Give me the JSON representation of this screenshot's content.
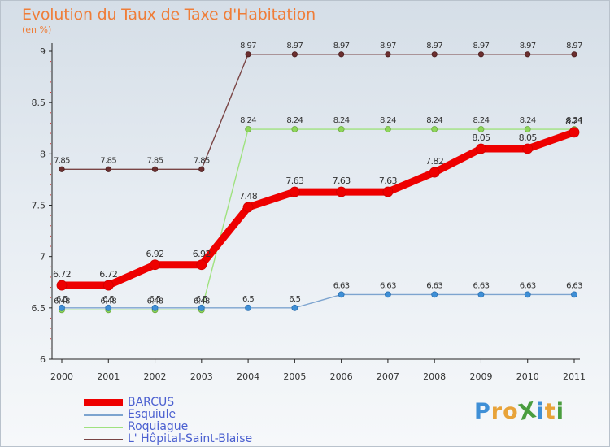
{
  "chart_data": {
    "type": "line",
    "title": "Evolution du Taux de Taxe d'Habitation",
    "ylabel": "(en %)",
    "xlabel": "",
    "categories": [
      "2000",
      "2001",
      "2002",
      "2003",
      "2004",
      "2005",
      "2006",
      "2007",
      "2008",
      "2009",
      "2010",
      "2011"
    ],
    "ylim": [
      6,
      9
    ],
    "yticks": [
      "6",
      "6.5",
      "7",
      "7.5",
      "8",
      "8.5",
      "9"
    ],
    "grid": false,
    "legend_position": "bottom-left",
    "series": [
      {
        "name": "BARCUS",
        "color": "#ee0000",
        "values": [
          6.72,
          6.72,
          6.92,
          6.92,
          7.48,
          7.63,
          7.63,
          7.63,
          7.82,
          8.05,
          8.05,
          8.21
        ],
        "labels": [
          "6.72",
          "6.72",
          "6.92",
          "6.92",
          "7.48",
          "7.63",
          "7.63",
          "7.63",
          "7.82",
          "8.05",
          "8.05",
          "8.21"
        ]
      },
      {
        "name": "Esquiule",
        "color": "#7da4cf",
        "values": [
          6.5,
          6.5,
          6.5,
          6.5,
          6.5,
          6.5,
          6.63,
          6.63,
          6.63,
          6.63,
          6.63,
          6.63
        ],
        "labels": [
          "6.5",
          "6.5",
          "6.5",
          "6.5",
          "6.5",
          "6.5",
          "6.63",
          "6.63",
          "6.63",
          "6.63",
          "6.63",
          "6.63"
        ]
      },
      {
        "name": "Roquiague",
        "color": "#9fe27f",
        "values": [
          6.48,
          6.48,
          6.48,
          6.48,
          8.24,
          8.24,
          8.24,
          8.24,
          8.24,
          8.24,
          8.24,
          8.24
        ],
        "labels": [
          "6.48",
          "6.48",
          "6.48",
          "6.48",
          "8.24",
          "8.24",
          "8.24",
          "8.24",
          "8.24",
          "8.24",
          "8.24",
          "8.24"
        ]
      },
      {
        "name": "L' Hôpital-Saint-Blaise",
        "color": "#7a4545",
        "values": [
          7.85,
          7.85,
          7.85,
          7.85,
          8.97,
          8.97,
          8.97,
          8.97,
          8.97,
          8.97,
          8.97,
          8.97
        ],
        "labels": [
          "7.85",
          "7.85",
          "7.85",
          "7.85",
          "8.97",
          "8.97",
          "8.97",
          "8.97",
          "8.97",
          "8.97",
          "8.97",
          "8.97"
        ]
      }
    ]
  },
  "logo": {
    "text": "ProXiti",
    "letters": [
      "P",
      "r",
      "o",
      "X",
      "i",
      "t",
      "i"
    ],
    "colors": [
      "#3f8fd6",
      "#e8a33a",
      "#e8a33a",
      "#4a9d3f",
      "#3f8fd6",
      "#e8a33a",
      "#4a9d3f"
    ]
  }
}
